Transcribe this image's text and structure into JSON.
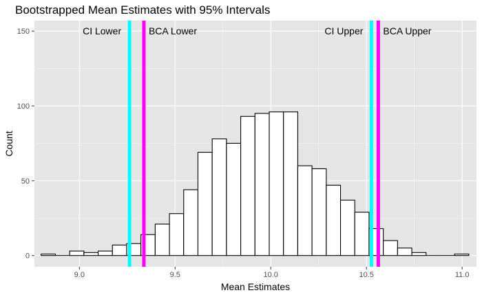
{
  "chart_data": {
    "type": "bar",
    "title": "Bootstrapped Mean Estimates with 95% Intervals",
    "xlabel": "Mean Estimates",
    "ylabel": "Count",
    "xlim": [
      8.765,
      11.075
    ],
    "ylim": [
      -7.5,
      157
    ],
    "x_ticks": [
      9.0,
      9.5,
      10.0,
      10.5,
      11.0
    ],
    "x_tick_labels": [
      "9.0",
      "9.5",
      "10.0",
      "10.5",
      "11.0"
    ],
    "y_ticks": [
      0,
      50,
      100,
      150
    ],
    "y_tick_labels": [
      "0",
      "50",
      "100",
      "150"
    ],
    "grid": true,
    "bin_width": 0.0745,
    "bin_starts": [
      8.8,
      8.8745,
      8.949,
      9.0235,
      9.098,
      9.1725,
      9.247,
      9.3215,
      9.396,
      9.4705,
      9.545,
      9.6195,
      9.694,
      9.7685,
      9.843,
      9.9175,
      9.992,
      10.0665,
      10.141,
      10.2155,
      10.29,
      10.3645,
      10.439,
      10.5135,
      10.588,
      10.6625,
      10.737,
      10.8115,
      10.886,
      10.9605
    ],
    "counts": [
      1,
      0,
      3,
      2,
      3,
      7,
      8,
      14,
      21,
      28,
      44,
      69,
      78,
      75,
      93,
      95,
      96,
      96,
      60,
      58,
      47,
      37,
      29,
      18,
      10,
      5,
      2,
      0,
      0,
      1
    ],
    "vlines": [
      {
        "label": "CI Lower",
        "x": 9.262,
        "color": "#00ffff"
      },
      {
        "label": "BCA Lower",
        "x": 9.337,
        "color": "#ff00ff"
      },
      {
        "label": "CI Upper",
        "x": 10.526,
        "color": "#00ffff"
      },
      {
        "label": "BCA Upper",
        "x": 10.562,
        "color": "#ff00ff"
      }
    ],
    "annotations": [
      {
        "text": "CI Lower",
        "x": 9.262,
        "y": 150,
        "side": "left"
      },
      {
        "text": "BCA Lower",
        "x": 9.337,
        "y": 150,
        "side": "right"
      },
      {
        "text": "CI Upper",
        "x": 10.526,
        "y": 150,
        "side": "left"
      },
      {
        "text": "BCA Upper",
        "x": 10.562,
        "y": 150,
        "side": "right"
      }
    ],
    "colors": {
      "panel": "#e5e5e5",
      "grid_major": "#ffffff",
      "bar_fill": "#ffffff",
      "bar_stroke": "#000000"
    }
  }
}
